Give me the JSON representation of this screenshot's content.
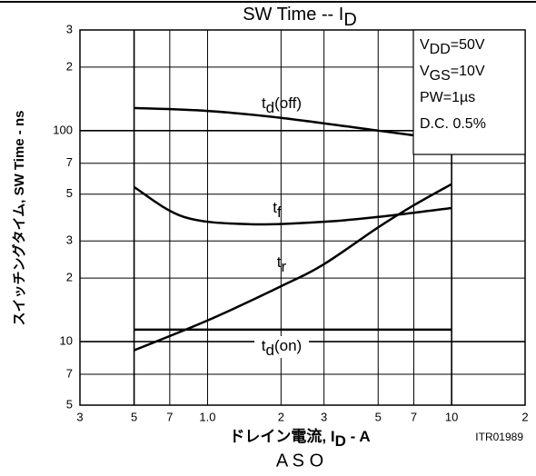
{
  "chart_data": {
    "type": "line",
    "title": "SW Time -- ID",
    "x_label": "ドレイン電流, ID - A",
    "y_label": "スイッチングタイム, SW Time - ns",
    "code": "ITR01989",
    "caption": "A S O",
    "annotations": [
      "VDD=50V",
      "VGS=10V",
      "PW=1µs",
      "D.C.   0.5%"
    ],
    "xscale": "log",
    "yscale": "log",
    "grid": true,
    "xlim": [
      0.3,
      20
    ],
    "ylim": [
      5,
      300
    ],
    "xticks": [
      {
        "value": 0.3,
        "label": "3"
      },
      {
        "value": 0.5,
        "label": "5"
      },
      {
        "value": 0.7,
        "label": "7"
      },
      {
        "value": 1,
        "label": "1.0"
      },
      2,
      3,
      5,
      7,
      10,
      {
        "value": 20,
        "label": "2"
      }
    ],
    "yticks": [
      5,
      7,
      10,
      {
        "value": 20,
        "label": "2"
      },
      {
        "value": 30,
        "label": "3"
      },
      {
        "value": 50,
        "label": "5"
      },
      {
        "value": 70,
        "label": "7"
      },
      100,
      {
        "value": 200,
        "label": "2"
      },
      {
        "value": 300,
        "label": "3"
      }
    ],
    "series": [
      {
        "name": "td(off)",
        "color": "#000000",
        "x": [
          0.5,
          1,
          2,
          5,
          7,
          10
        ],
        "values": [
          128,
          124,
          115,
          100,
          95,
          90
        ]
      },
      {
        "name": "tf",
        "color": "#000000",
        "x": [
          0.5,
          0.8,
          1.5,
          3,
          5,
          10
        ],
        "values": [
          54,
          39,
          36,
          37,
          39,
          43
        ]
      },
      {
        "name": "tr",
        "color": "#000000",
        "x": [
          0.5,
          1,
          2,
          3,
          5,
          7,
          10
        ],
        "values": [
          9.1,
          12.6,
          18.3,
          23.3,
          34.8,
          44.3,
          55.8
        ]
      },
      {
        "name": "td(on)",
        "color": "#000000",
        "x": [
          0.5,
          10
        ],
        "values": [
          11.4,
          11.4
        ]
      }
    ]
  }
}
